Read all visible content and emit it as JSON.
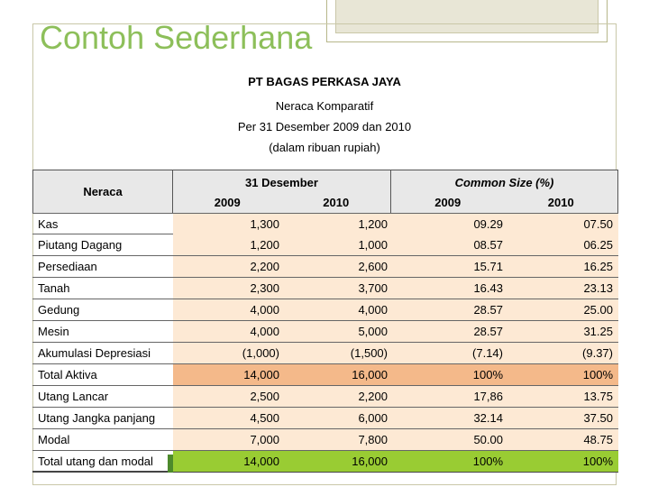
{
  "slide": {
    "title": "Contoh Sederhana"
  },
  "report": {
    "company": "PT BAGAS PERKASA JAYA",
    "name": "Neraca Komparatif",
    "period": "Per 31 Desember 2009 dan 2010",
    "unit": "(dalam ribuan rupiah)"
  },
  "table": {
    "headers": {
      "row_label": "Neraca",
      "group1": "31 Desember",
      "group2": "Common Size (%)",
      "year1": "2009",
      "year2": "2010"
    },
    "rows": [
      {
        "label": "Kas",
        "v2009": "1,300",
        "v2010": "1,200",
        "p2009": "09.29",
        "p2010": "07.50"
      },
      {
        "label": "Piutang Dagang",
        "v2009": "1,200",
        "v2010": "1,000",
        "p2009": "08.57",
        "p2010": "06.25"
      },
      {
        "label": "Persediaan",
        "v2009": "2,200",
        "v2010": "2,600",
        "p2009": "15.71",
        "p2010": "16.25"
      },
      {
        "label": "Tanah",
        "v2009": "2,300",
        "v2010": "3,700",
        "p2009": "16.43",
        "p2010": "23.13"
      },
      {
        "label": "Gedung",
        "v2009": "4,000",
        "v2010": "4,000",
        "p2009": "28.57",
        "p2010": "25.00"
      },
      {
        "label": "Mesin",
        "v2009": "4,000",
        "v2010": "5,000",
        "p2009": "28.57",
        "p2010": "31.25"
      },
      {
        "label": "Akumulasi Depresiasi",
        "v2009": "(1,000)",
        "v2010": "(1,500)",
        "p2009": "(7.14)",
        "p2010": "(9.37)"
      },
      {
        "label": "Total Aktiva",
        "v2009": "14,000",
        "v2010": "16,000",
        "p2009": "100%",
        "p2010": "100%"
      },
      {
        "label": "Utang Lancar",
        "v2009": "2,500",
        "v2010": "2,200",
        "p2009": "17,86",
        "p2010": "13.75"
      },
      {
        "label": "Utang Jangka panjang",
        "v2009": "4,500",
        "v2010": "6,000",
        "p2009": "32.14",
        "p2010": "37.50"
      },
      {
        "label": "Modal",
        "v2009": "7,000",
        "v2010": "7,800",
        "p2009": "50.00",
        "p2010": "48.75"
      },
      {
        "label": "Total utang dan modal",
        "v2009": "14,000",
        "v2010": "16,000",
        "p2009": "100%",
        "p2010": "100%"
      }
    ]
  }
}
